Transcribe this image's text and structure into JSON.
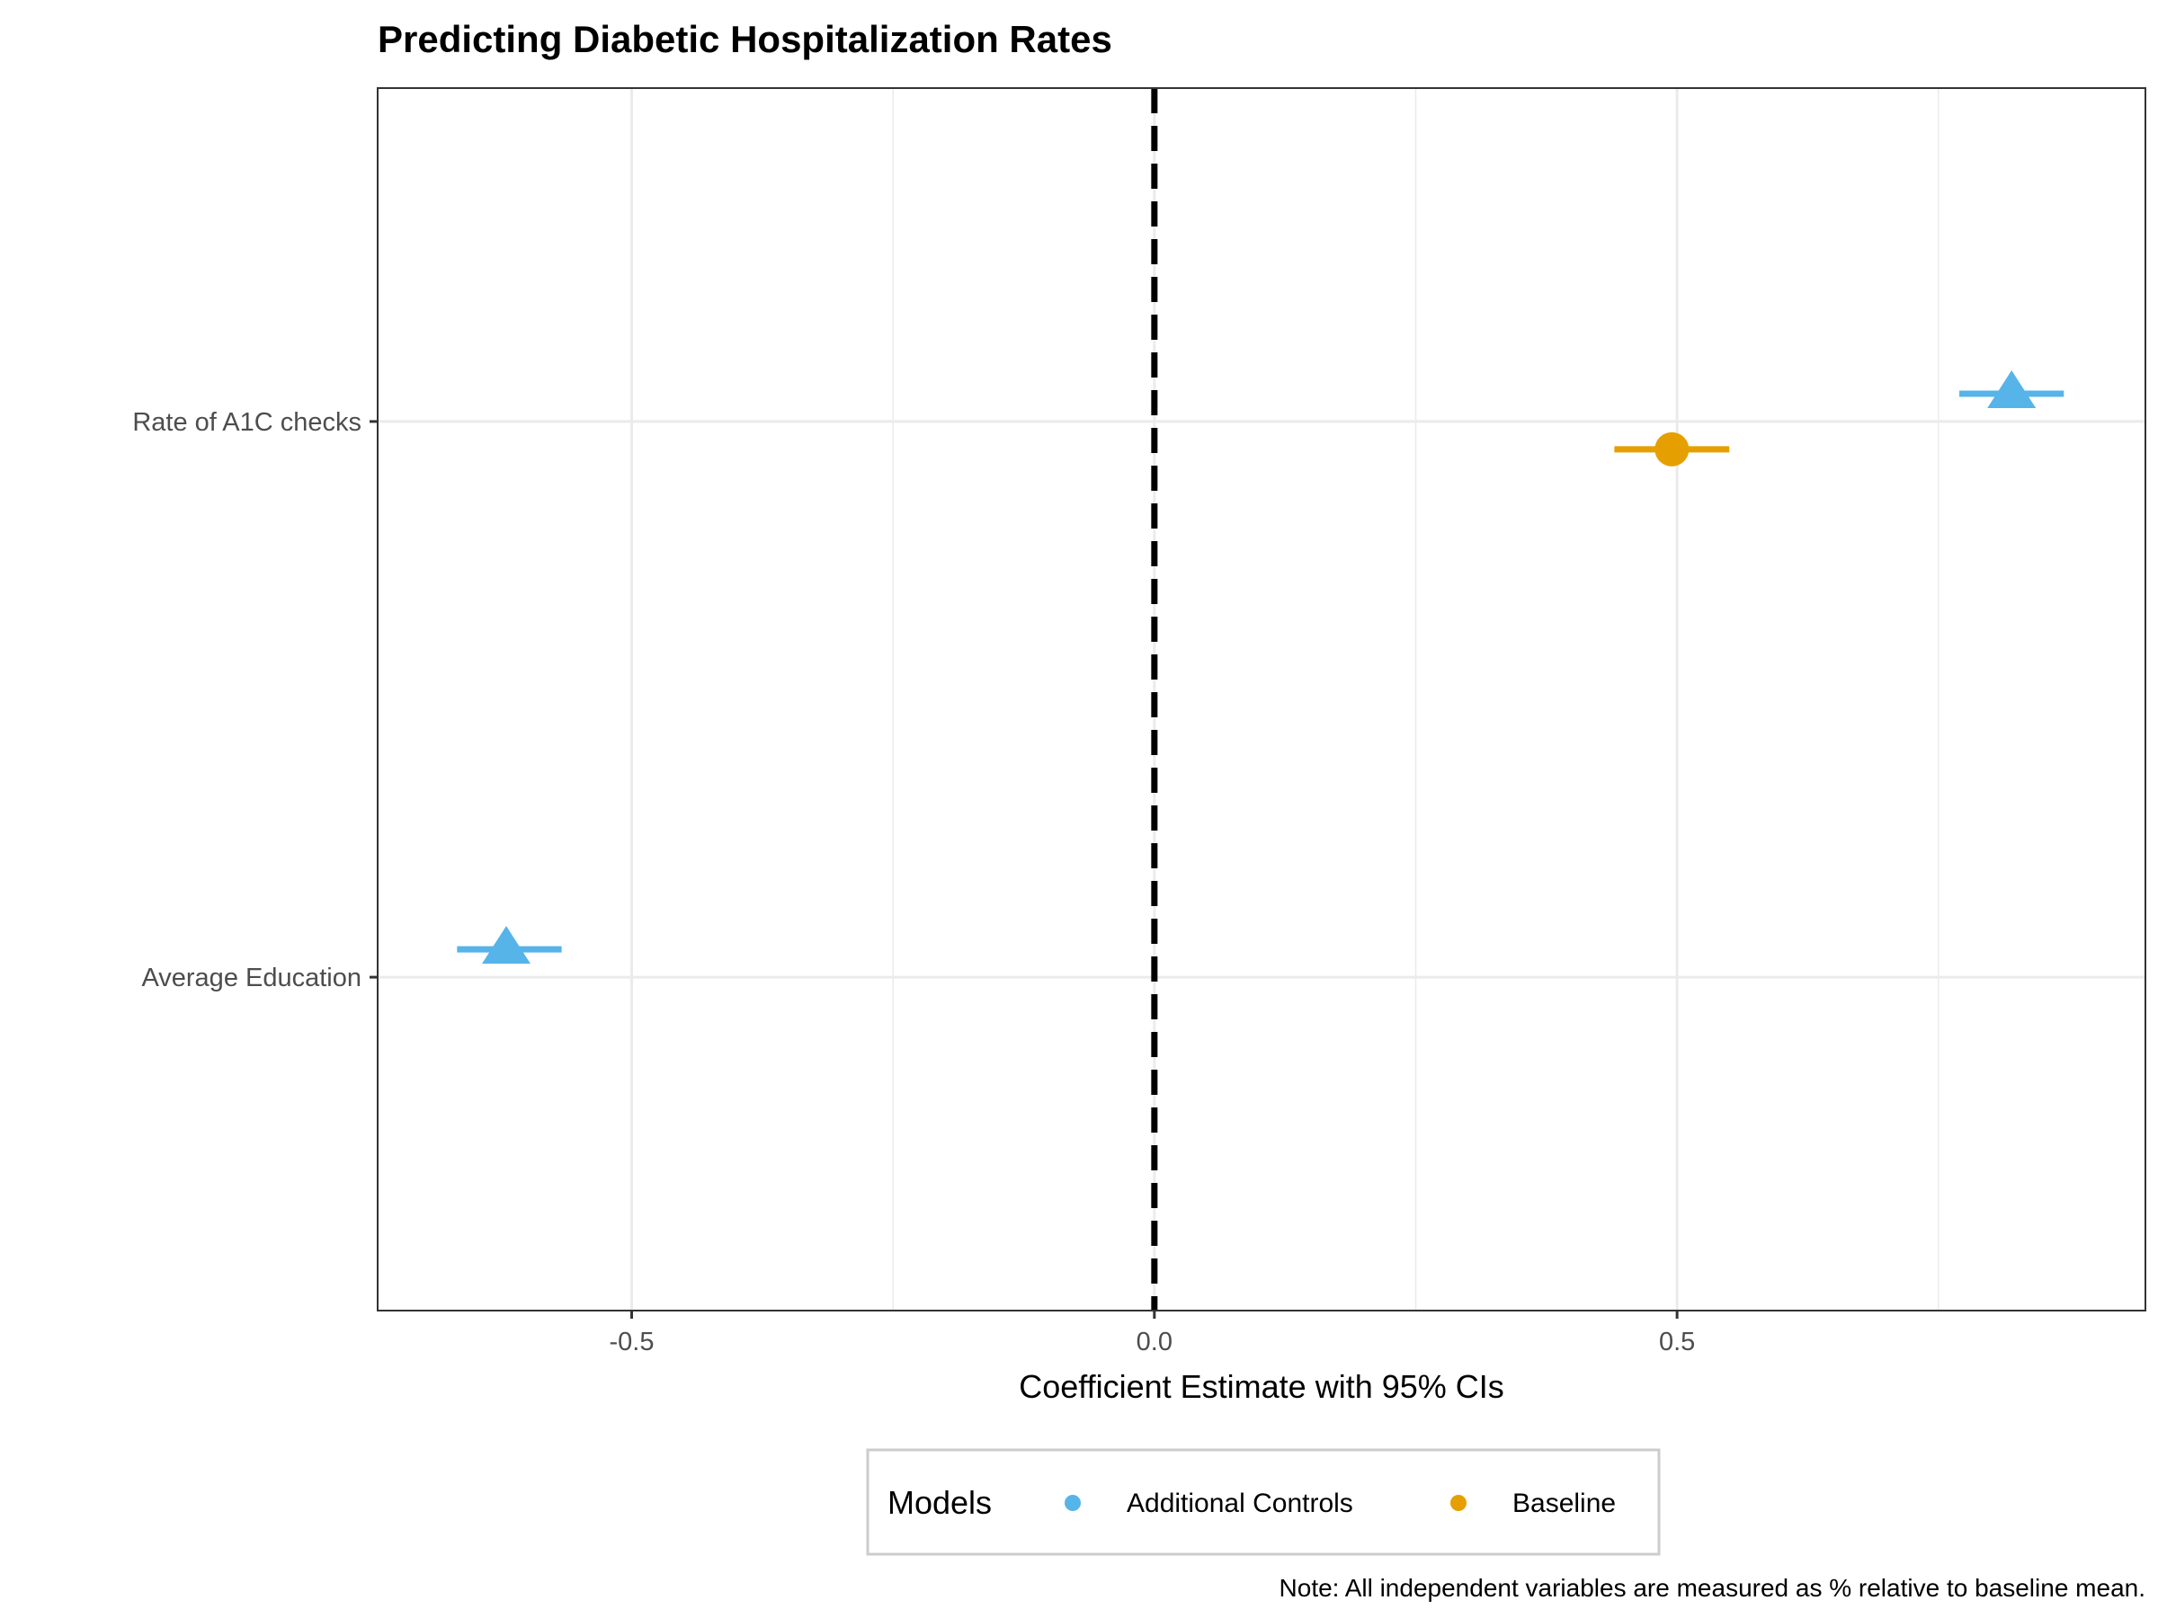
{
  "chart_data": {
    "type": "scatter",
    "subtype": "coefficient-plot",
    "title": "Predicting Diabetic Hospitalization Rates",
    "xlabel": "Coefficient Estimate with 95% CIs",
    "ylabel": "",
    "xlim": [
      -0.743,
      0.948
    ],
    "x_ticks": [
      -0.5,
      0.0,
      0.5
    ],
    "x_tick_labels": [
      "-0.5",
      "0.0",
      "0.5"
    ],
    "categories": [
      "Rate of A1C checks",
      "Average Education"
    ],
    "reference_line": {
      "x": 0,
      "style": "dashed",
      "color": "#000000"
    },
    "grid": true,
    "legend": {
      "title": "Models",
      "position": "bottom",
      "entries": [
        {
          "label": "Additional Controls",
          "color": "#56B4E9"
        },
        {
          "label": "Baseline",
          "color": "#E69F00"
        }
      ]
    },
    "series": [
      {
        "name": "Additional Controls",
        "color": "#56B4E9",
        "marker": "triangle",
        "points": [
          {
            "category": "Rate of A1C checks",
            "estimate": 0.82,
            "ci_low": 0.77,
            "ci_high": 0.87
          },
          {
            "category": "Average Education",
            "estimate": -0.62,
            "ci_low": -0.667,
            "ci_high": -0.567
          }
        ]
      },
      {
        "name": "Baseline",
        "color": "#E69F00",
        "marker": "circle",
        "points": [
          {
            "category": "Rate of A1C checks",
            "estimate": 0.495,
            "ci_low": 0.44,
            "ci_high": 0.55
          }
        ]
      }
    ],
    "caption": "Note: All independent variables are measured as % relative to baseline mean."
  }
}
